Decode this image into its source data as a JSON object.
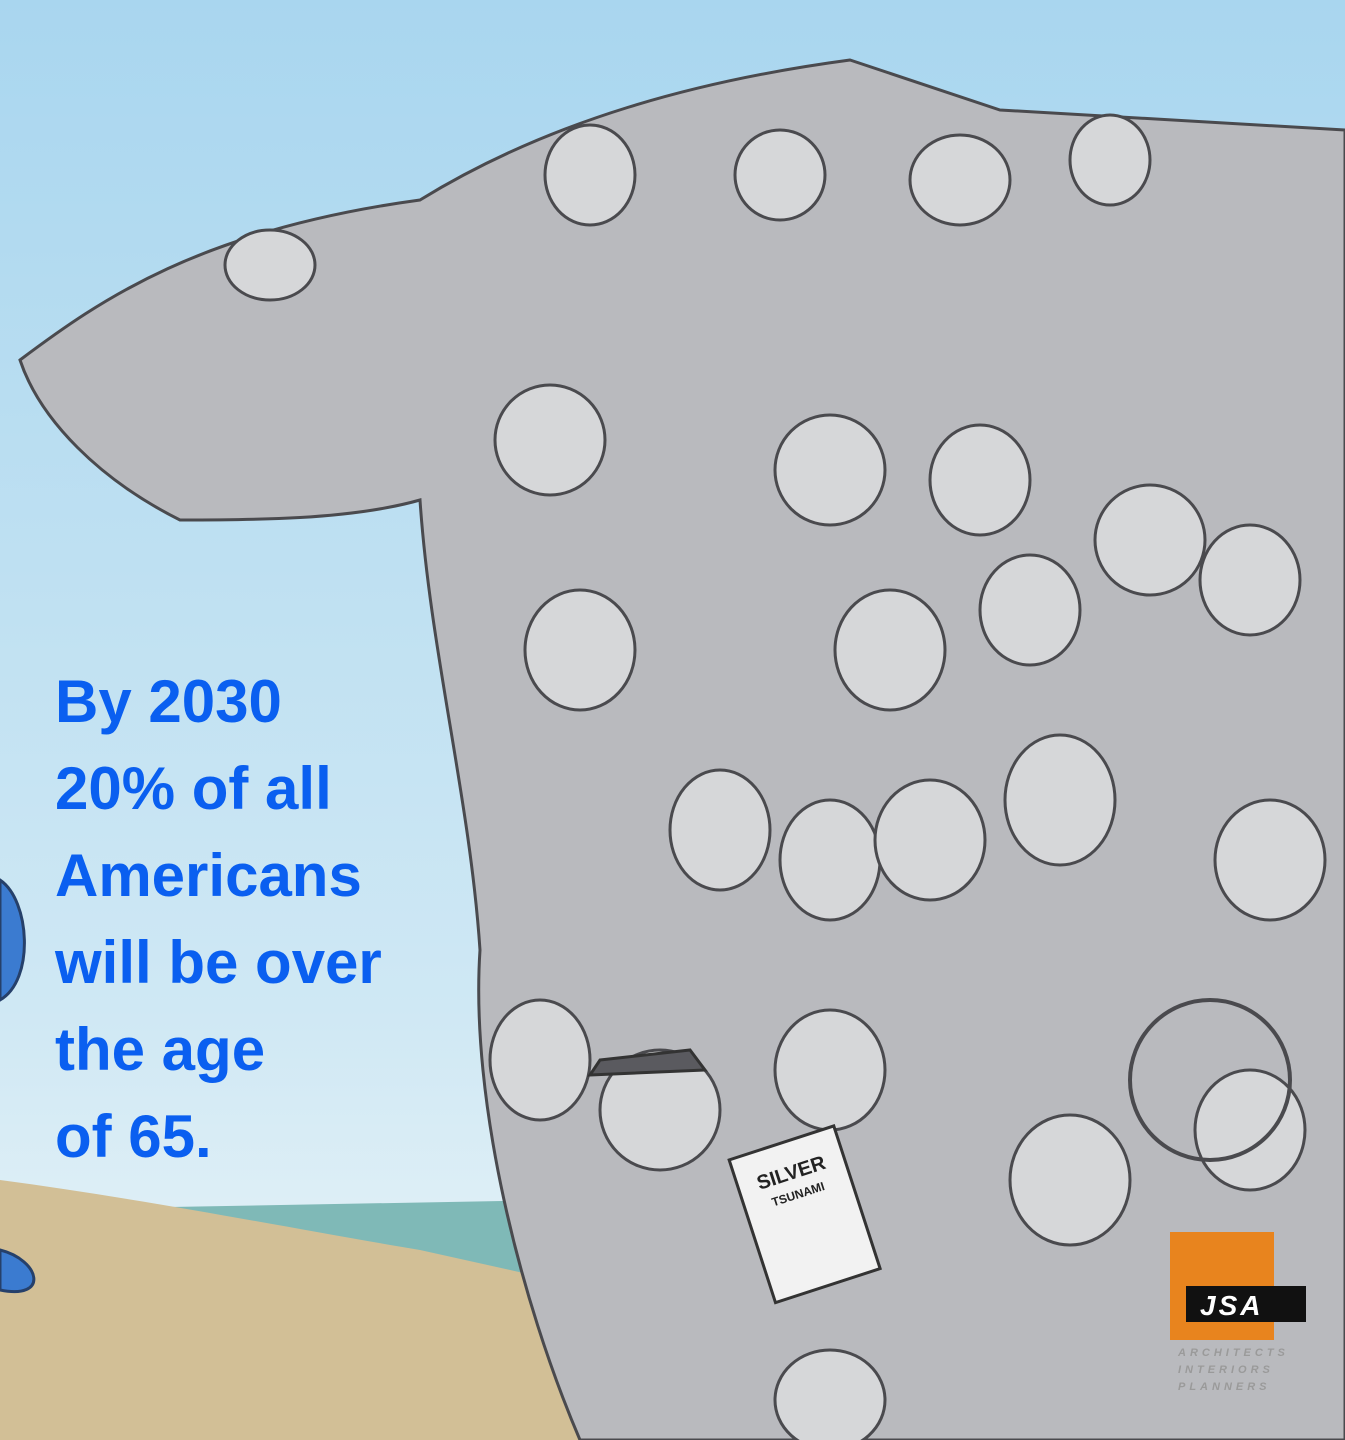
{
  "headline": {
    "lines": [
      "By 2030",
      "20% of all",
      "Americans",
      "will be over",
      "the age",
      "of 65."
    ]
  },
  "newspaper": {
    "headline": [
      "SILVER",
      "TSUNAMI"
    ]
  },
  "logo": {
    "name": "JSA",
    "tagline": [
      "ARCHITECTS",
      "INTERIORS",
      "PLANNERS"
    ]
  }
}
